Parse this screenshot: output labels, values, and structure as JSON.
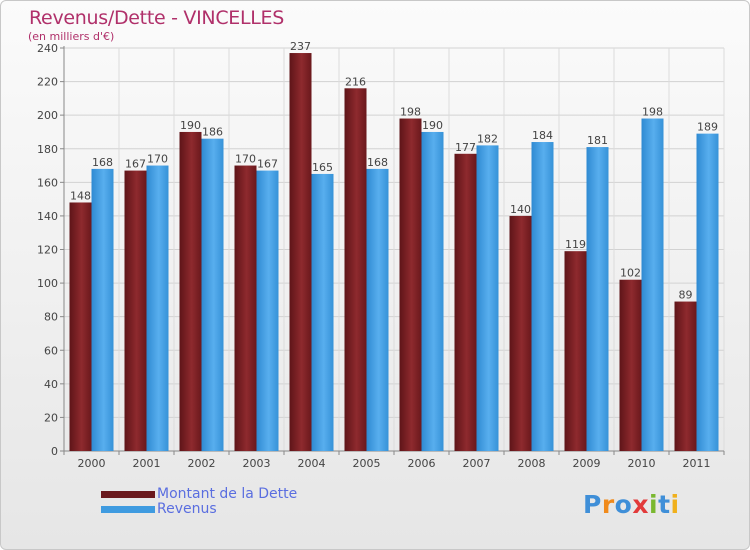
{
  "chart_data": {
    "type": "bar",
    "title": "Revenus/Dette - VINCELLES",
    "subtitle": "(en milliers d'€)",
    "categories": [
      "2000",
      "2001",
      "2002",
      "2003",
      "2004",
      "2005",
      "2006",
      "2007",
      "2008",
      "2009",
      "2010",
      "2011"
    ],
    "series": [
      {
        "name": "Montant de la Dette",
        "color": "#7a1e22",
        "values": [
          148,
          167,
          190,
          170,
          237,
          216,
          198,
          177,
          140,
          119,
          102,
          89
        ]
      },
      {
        "name": "Revenus",
        "color": "#3f9be0",
        "values": [
          168,
          170,
          186,
          167,
          165,
          168,
          190,
          182,
          184,
          181,
          198,
          189
        ]
      }
    ],
    "y_ticks": [
      0,
      20,
      40,
      60,
      80,
      100,
      120,
      140,
      160,
      180,
      200,
      220,
      240
    ],
    "ylim": [
      0,
      240
    ],
    "grid": true,
    "legend_position": "bottom-left",
    "data_labels": true
  },
  "logo": {
    "text": "Proxiti",
    "letters": [
      {
        "ch": "P",
        "color": "#3f8fd8"
      },
      {
        "ch": "r",
        "color": "#f08a1c"
      },
      {
        "ch": "o",
        "color": "#3f8fd8"
      },
      {
        "ch": "x",
        "color": "#e23a3a"
      },
      {
        "ch": "i",
        "color": "#7ab830"
      },
      {
        "ch": "t",
        "color": "#3f8fd8"
      },
      {
        "ch": "i",
        "color": "#f0b01c"
      }
    ]
  }
}
